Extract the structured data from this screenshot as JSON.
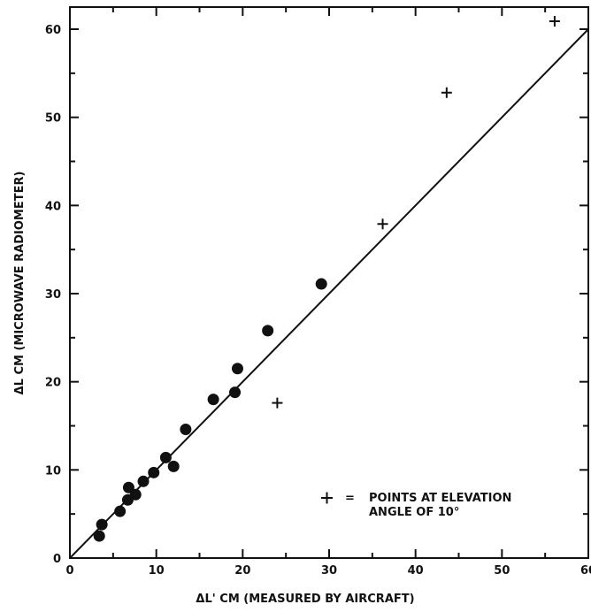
{
  "chart_data": {
    "type": "scatter",
    "xlabel": "ΔL' CM (MEASURED BY AIRCRAFT)",
    "ylabel": "ΔL CM (MICROWAVE RADIOMETER)",
    "xlim": [
      0,
      60
    ],
    "ylim": [
      0,
      62
    ],
    "xticks": [
      "0",
      "10",
      "20",
      "30",
      "40",
      "50",
      "60"
    ],
    "yticks": [
      "0",
      "10",
      "20",
      "30",
      "40",
      "50",
      "60"
    ],
    "grid": false,
    "series": [
      {
        "marker": "circle",
        "points": [
          [
            3.4,
            2.5
          ],
          [
            3.7,
            3.8
          ],
          [
            5.8,
            5.3
          ],
          [
            6.7,
            6.6
          ],
          [
            6.8,
            8.0
          ],
          [
            7.6,
            7.2
          ],
          [
            8.5,
            8.7
          ],
          [
            9.7,
            9.7
          ],
          [
            11.1,
            11.4
          ],
          [
            12.0,
            10.4
          ],
          [
            13.4,
            14.6
          ],
          [
            16.6,
            18.0
          ],
          [
            19.1,
            18.8
          ],
          [
            19.4,
            21.5
          ],
          [
            22.9,
            25.8
          ],
          [
            29.1,
            31.1
          ]
        ]
      },
      {
        "marker": "plus",
        "points": [
          [
            24.0,
            17.6
          ],
          [
            36.2,
            37.9
          ],
          [
            43.6,
            52.8
          ],
          [
            56.1,
            60.9
          ]
        ]
      }
    ],
    "lines": [
      {
        "x": [
          0,
          60
        ],
        "y": [
          0,
          60
        ]
      }
    ],
    "annotation": {
      "symbol": "+",
      "equals": "=",
      "line1": "POINTS AT ELEVATION",
      "line2": "ANGLE OF 10°"
    }
  }
}
